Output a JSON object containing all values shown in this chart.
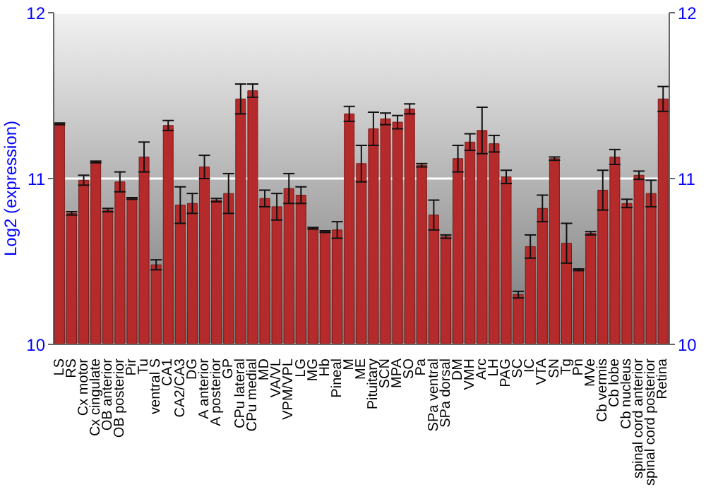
{
  "chart_data": {
    "type": "bar",
    "ylabel": "Log2 (expression)",
    "categories": [
      "LS",
      "RS",
      "Cx motor",
      "Cx cingulate",
      "OB anterior",
      "OB posterior",
      "Pir",
      "Tu",
      "ventral S",
      "CA1",
      "CA2/CA3",
      "DG",
      "A anterior",
      "A posterior",
      "GP",
      "CPu lateral",
      "CPu medial",
      "MD",
      "VA/VL",
      "VPM/VPL",
      "LG",
      "MG",
      "Hb",
      "Pineal",
      "M",
      "ME",
      "Pituitary",
      "SCN",
      "MPA",
      "SO",
      "Pa",
      "SPa ventral",
      "SPa dorsal",
      "DM",
      "VMH",
      "Arc",
      "LH",
      "PAG",
      "SC",
      "IC",
      "VTA",
      "SN",
      "Tg",
      "Pn",
      "MVe",
      "Cb vermis",
      "Cb lobe",
      "Cb nucleus",
      "spinal cord anterior",
      "spinal cord posterior",
      "Retina"
    ],
    "values": [
      11.33,
      10.79,
      10.99,
      11.1,
      10.81,
      10.98,
      10.88,
      11.13,
      10.48,
      11.32,
      10.84,
      10.85,
      11.07,
      10.87,
      10.91,
      11.48,
      11.53,
      10.88,
      10.83,
      10.94,
      10.9,
      10.7,
      10.68,
      10.69,
      11.39,
      11.09,
      11.3,
      11.36,
      11.34,
      11.42,
      11.08,
      10.78,
      10.65,
      11.12,
      11.22,
      11.29,
      11.21,
      11.01,
      10.3,
      10.59,
      10.82,
      11.12,
      10.61,
      10.45,
      10.67,
      10.93,
      11.13,
      10.85,
      11.02,
      10.91,
      11.48
    ],
    "errors": [
      0.005,
      0.01,
      0.03,
      0.005,
      0.01,
      0.06,
      0.005,
      0.09,
      0.03,
      0.03,
      0.11,
      0.06,
      0.07,
      0.01,
      0.12,
      0.09,
      0.04,
      0.05,
      0.08,
      0.09,
      0.05,
      0.005,
      0.005,
      0.05,
      0.045,
      0.11,
      0.1,
      0.035,
      0.04,
      0.03,
      0.01,
      0.09,
      0.01,
      0.08,
      0.05,
      0.14,
      0.05,
      0.04,
      0.02,
      0.07,
      0.08,
      0.01,
      0.12,
      0.005,
      0.01,
      0.12,
      0.045,
      0.025,
      0.025,
      0.08,
      0.075
    ],
    "color": "#b52a2a",
    "ylim": [
      10,
      12
    ],
    "yticks": [
      10,
      11,
      12
    ],
    "y2lim": [
      10,
      12
    ],
    "y2ticks": [
      10,
      11,
      12
    ],
    "grid": "y",
    "legend": false
  }
}
